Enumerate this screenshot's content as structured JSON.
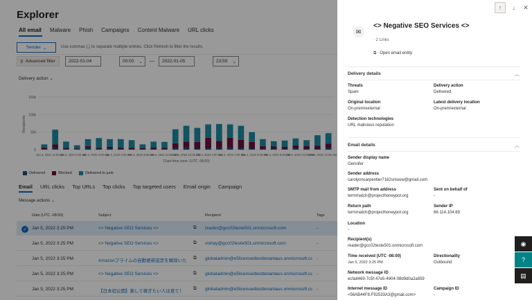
{
  "explorer": {
    "title": "Explorer",
    "tabs": [
      "All email",
      "Malware",
      "Phish",
      "Campaigns",
      "Content Malware",
      "URL clicks"
    ],
    "sender_label": "Sender",
    "filter_hint": "Use commas (,) to separate multiple entries. Click Refresh to filter the results.",
    "advanced_filter": "Advanced filter",
    "start_date": "2022-01-04",
    "start_time": "00:00",
    "end_date": "2022-01-05",
    "end_time": "23:59",
    "delivery_action": "Delivery action",
    "chart_footer": "Chart time zone: (UTC -08:00)",
    "bottom_tabs": [
      "Email",
      "URL clicks",
      "Top URLs",
      "Top clicks",
      "Top targeted users",
      "Email origin",
      "Campaign"
    ],
    "message_actions": "Message actions",
    "columns": {
      "date": "Date (UTC -08:00)",
      "subject": "Subject",
      "recipient": "Recipient",
      "tags": "Tags"
    },
    "rows": [
      {
        "date": "Jan 5, 2022 3:25 PM",
        "subject": "<> Negative SEO Services <>",
        "recipient": "reader@gcc02teste501.onmicrosoft.com",
        "tags": "-"
      },
      {
        "date": "Jan 5, 2022 3:25 PM",
        "subject": "<> Negative SEO Services <>",
        "recipient": "vishay@gcc02teste501.onmicrosoft.com",
        "tags": "-"
      },
      {
        "date": "Jan 5, 2022 3:25 PM",
        "subject": "Amazonプライムの自動更新設定を解除いた",
        "recipient": "globaladmin@e5licensedtesttenantaus.onmicrosoft.com",
        "tags": "-"
      },
      {
        "date": "Jan 5, 2022 3:25 PM",
        "subject": "<> Negative SEO Services <>",
        "recipient": "globaladmin@e5licensedtesttenantaus.onmicrosoft.com",
        "tags": "-"
      },
      {
        "date": "Jan 5, 2022 3:25 PM",
        "subject": "【日本初公開】楽して稼ぎたい人は見て！",
        "recipient": "globaladmin@e5licensedtesttenantaus.onmicrosoft.com",
        "tags": "-"
      }
    ]
  },
  "chart_data": {
    "type": "bar",
    "stacked": true,
    "ylim": [
      0,
      150000
    ],
    "yticks": [
      "150k",
      "100k",
      "50k",
      "0"
    ],
    "ylabel": "Recipients",
    "x_tick_labels": [
      "Jan 4, 2022 12:00 AM",
      "Jan 4, 2022 2:00 AM",
      "Jan 4, 2022 4:00 AM",
      "Jan 4, 2022 6:00 AM",
      "Jan 4, 2022 8:00 AM",
      "Jan 4, 2022 10:00 AM",
      "Jan 4, 2022 12:00 PM",
      "Jan 4, 2022 2:00 PM",
      "Jan 4, 2022 4:00 PM",
      "Jan 4, 2022 6:00 PM",
      "Jan 4, 2022 8:00 PM",
      "Jan 4, 2022 10:00 PM",
      "Jan 5, 2022 12:00 AM"
    ],
    "series": [
      {
        "name": "Delivered",
        "color": "#1f4e79",
        "values": [
          2000,
          5000,
          3000,
          1500,
          6000,
          3000,
          4000,
          2000,
          2000,
          2000,
          3000,
          2000,
          5000,
          7000,
          4000,
          4000,
          5000,
          6000,
          5000,
          4000,
          3000,
          3000,
          3000,
          4000,
          3000,
          3000,
          5000
        ]
      },
      {
        "name": "Blocked",
        "color": "#6b0f3c",
        "values": [
          3000,
          10000,
          2000,
          2000,
          4000,
          2000,
          4000,
          3000,
          3000,
          2000,
          3000,
          3000,
          13000,
          16000,
          18000,
          30000,
          20000,
          28000,
          23000,
          18000,
          7000,
          6000,
          5000,
          8000,
          7000,
          8000,
          12000
        ]
      },
      {
        "name": "Delivered to junk",
        "color": "#1d8aa3",
        "values": [
          10000,
          42000,
          18000,
          9000,
          20000,
          28000,
          22000,
          25000,
          22000,
          11000,
          17000,
          17000,
          40000,
          45000,
          40000,
          38000,
          48000,
          38000,
          40000,
          28000,
          20000,
          15000,
          18000,
          20000,
          17000,
          30000,
          30000
        ]
      }
    ]
  },
  "panel": {
    "title": "<> Negative SEO Services <>",
    "links": "2 Links",
    "open_entity": "Open email entity",
    "delivery_header": "Delivery details",
    "threats_label": "Threats",
    "threats_value": "Spam",
    "delivery_action_label": "Delivery action",
    "delivery_action_value": "Delivered",
    "orig_loc_label": "Original location",
    "orig_loc_value": "On-prem/external",
    "latest_loc_label": "Latest delivery location",
    "latest_loc_value": "On-prem/external",
    "detection_label": "Detection technologies",
    "detection_value": "URL malicious reputation",
    "email_header": "Email details",
    "sender_name_label": "Sender display name",
    "sender_name_value": "Gennifer",
    "sender_addr_label": "Sender address",
    "sender_addr_value": "carolynncarpentier7162smoow@gmail.com",
    "smtp_label": "SMTP mail from address",
    "smtp_value": "termmatch@projecthoneypot.org",
    "behalf_label": "Sent on behalf of",
    "behalf_value": "-",
    "return_label": "Return path",
    "return_value": "termmatch@projecthoneypot.org",
    "ip_label": "Sender IP",
    "ip_value": "66.114.104.69",
    "location_label": "Location",
    "location_value": "-",
    "recipients_label": "Recipient(s)",
    "recipients_value": "reader@gcc02teste501.onmicrosoft.com",
    "time_label": "Time received (UTC -08:00)",
    "time_value": "Jan 5, 2022 3:25 PM",
    "direction_label": "Directionality",
    "direction_value": "Outbound",
    "netid_label": "Network message ID",
    "netid_value": "ecfa8469-7c5f-47e5-4904-08d9d0a2a859",
    "imid_label": "Internet message ID",
    "imid_value": "<56AB44F8.F92533A3@gmail.com>",
    "campaign_label": "Campaign ID",
    "campaign_value": "-"
  }
}
